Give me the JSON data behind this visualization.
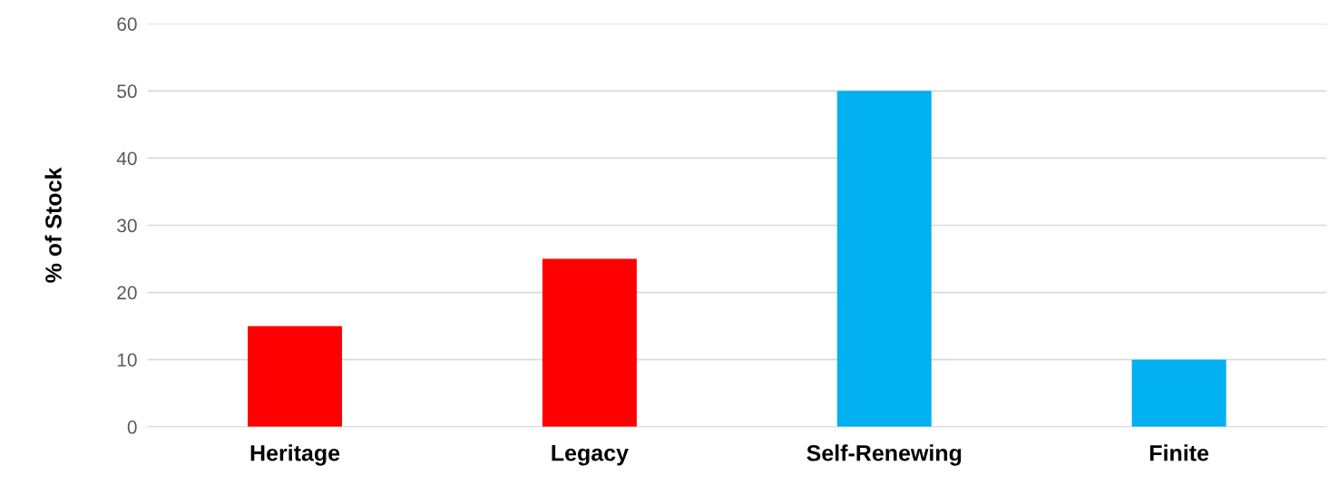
{
  "chart_data": {
    "type": "bar",
    "ylabel": "% of Stock",
    "categories": [
      "Heritage",
      "Legacy",
      "Self-Renewing",
      "Finite"
    ],
    "values": [
      15,
      25,
      50,
      10
    ],
    "colors": [
      "#ff0000",
      "#ff0000",
      "#00b0f0",
      "#00b0f0"
    ],
    "ylim": [
      0,
      60
    ],
    "yticks": [
      0,
      10,
      20,
      30,
      40,
      50,
      60
    ],
    "grid": "y"
  }
}
